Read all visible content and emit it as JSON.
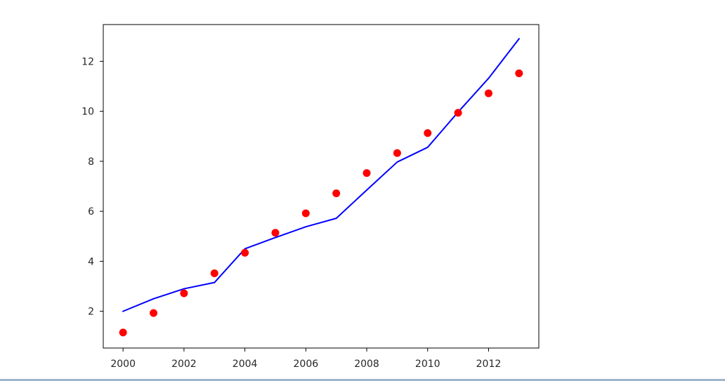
{
  "chart_data": {
    "type": "line",
    "title": "",
    "xlabel": "",
    "ylabel": "",
    "xlim": [
      1999.35,
      2013.65
    ],
    "ylim": [
      0.53,
      13.47
    ],
    "grid": false,
    "legend": "none",
    "x": [
      2000,
      2001,
      2002,
      2003,
      2004,
      2005,
      2006,
      2007,
      2008,
      2009,
      2010,
      2011,
      2012,
      2013
    ],
    "x_ticks": [
      "2000",
      "2002",
      "2004",
      "2006",
      "2008",
      "2010",
      "2012"
    ],
    "y_ticks": [
      "2",
      "4",
      "6",
      "8",
      "10",
      "12"
    ],
    "series": [
      {
        "kind": "line",
        "color": "#0000ff",
        "values": [
          2.0,
          2.5,
          2.9,
          3.15,
          4.5,
          4.95,
          5.38,
          5.72,
          6.85,
          7.97,
          8.56,
          9.97,
          11.32,
          12.9
        ]
      },
      {
        "kind": "scatter",
        "color": "#ff0000",
        "values": [
          1.15,
          1.93,
          2.72,
          3.52,
          4.34,
          5.14,
          5.92,
          6.72,
          7.53,
          8.33,
          9.13,
          9.94,
          10.72,
          11.52
        ]
      }
    ]
  }
}
